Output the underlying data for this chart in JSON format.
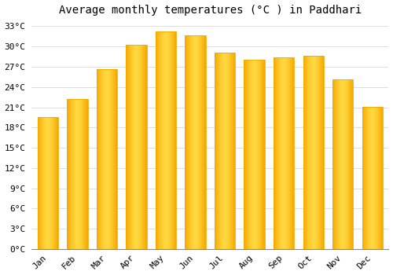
{
  "title": "Average monthly temperatures (°C ) in Paddhari",
  "months": [
    "Jan",
    "Feb",
    "Mar",
    "Apr",
    "May",
    "Jun",
    "Jul",
    "Aug",
    "Sep",
    "Oct",
    "Nov",
    "Dec"
  ],
  "values": [
    19.5,
    22.2,
    26.6,
    30.3,
    32.2,
    31.7,
    29.1,
    28.0,
    28.4,
    28.6,
    25.1,
    21.1
  ],
  "bar_color_edge": "#F5A800",
  "bar_color_center": "#FFD840",
  "background_color": "#ffffff",
  "grid_color": "#dddddd",
  "ylim": [
    0,
    34
  ],
  "yticks": [
    0,
    3,
    6,
    9,
    12,
    15,
    18,
    21,
    24,
    27,
    30,
    33
  ],
  "ytick_labels": [
    "0°C",
    "3°C",
    "6°C",
    "9°C",
    "12°C",
    "15°C",
    "18°C",
    "21°C",
    "24°C",
    "27°C",
    "30°C",
    "33°C"
  ],
  "title_fontsize": 10,
  "tick_fontsize": 8,
  "font_family": "monospace",
  "bar_width": 0.7
}
